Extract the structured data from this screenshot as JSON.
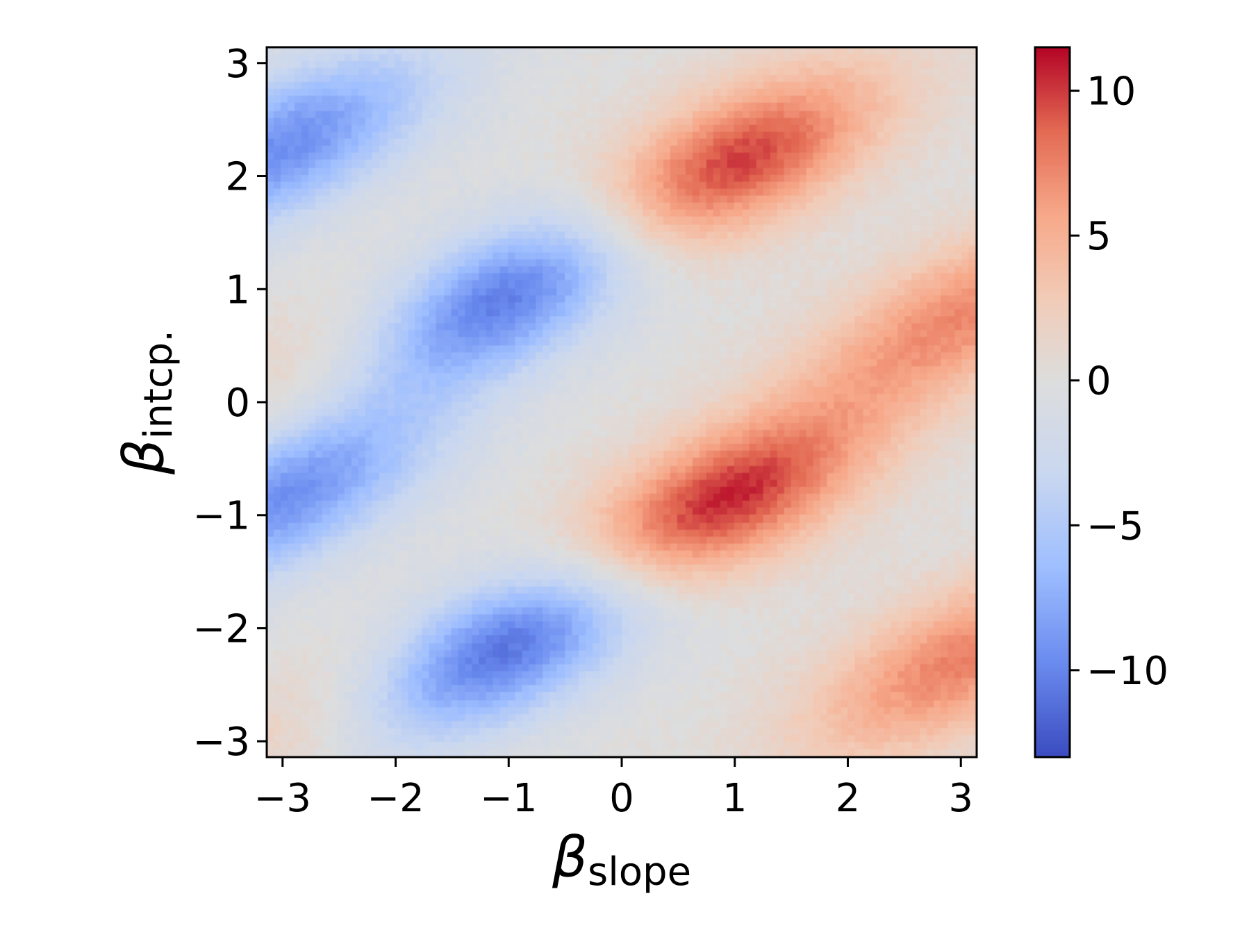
{
  "chart_data": {
    "type": "heatmap",
    "title": "",
    "xlabel": "β_slope",
    "xlabel_symbol": "β",
    "xlabel_subscript": "slope",
    "ylabel": "β_intcp.",
    "ylabel_symbol": "β",
    "ylabel_subscript": "intcp.",
    "xlim": [
      -3.14,
      3.14
    ],
    "ylim": [
      3.14,
      -3.14
    ],
    "y_inverted": true,
    "x_ticks": [
      -3,
      -2,
      -1,
      0,
      1,
      2,
      3
    ],
    "x_tick_labels": [
      "−3",
      "−2",
      "−1",
      "0",
      "1",
      "2",
      "3"
    ],
    "y_ticks": [
      -3,
      -2,
      -1,
      0,
      1,
      2,
      3
    ],
    "y_tick_labels": [
      "−3",
      "−2",
      "−1",
      "0",
      "1",
      "2",
      "3"
    ],
    "grid": false,
    "colormap": "coolwarm",
    "colormap_stops": [
      "#3b4cc0",
      "#6a8bef",
      "#9ebeff",
      "#c9d7f0",
      "#dddddd",
      "#f2cbb7",
      "#f7a889",
      "#e36a53",
      "#b40426"
    ],
    "color_range": [
      -13,
      11.5
    ],
    "colorbar": {
      "position": "right",
      "ticks": [
        10,
        5,
        0,
        -5,
        -10
      ],
      "tick_labels": [
        "10",
        "5",
        "0",
        "−5",
        "−10"
      ]
    },
    "grid_resolution": 100,
    "field": {
      "description_of_peaks": "value(x,y) = sum of anisotropic Gaussian blobs aligned along a diagonal band",
      "blobs": [
        {
          "x": 0.8,
          "y": -0.95,
          "amp": 11.5
        },
        {
          "x": 0.9,
          "y": 2.05,
          "amp": 10.8
        },
        {
          "x": -1.0,
          "y": -2.15,
          "amp": -12.5
        },
        {
          "x": -1.0,
          "y": 0.95,
          "amp": -12.0
        },
        {
          "x": -3.0,
          "y": -0.85,
          "amp": -9.5
        },
        {
          "x": -3.0,
          "y": 2.25,
          "amp": -9.5
        },
        {
          "x": 3.0,
          "y": -2.3,
          "amp": 7.5
        },
        {
          "x": 3.0,
          "y": 0.75,
          "amp": 7.0
        },
        {
          "x": -2.6,
          "y": -2.8,
          "amp": 3.0
        },
        {
          "x": -2.6,
          "y": 0.3,
          "amp": 3.0
        }
      ]
    }
  }
}
